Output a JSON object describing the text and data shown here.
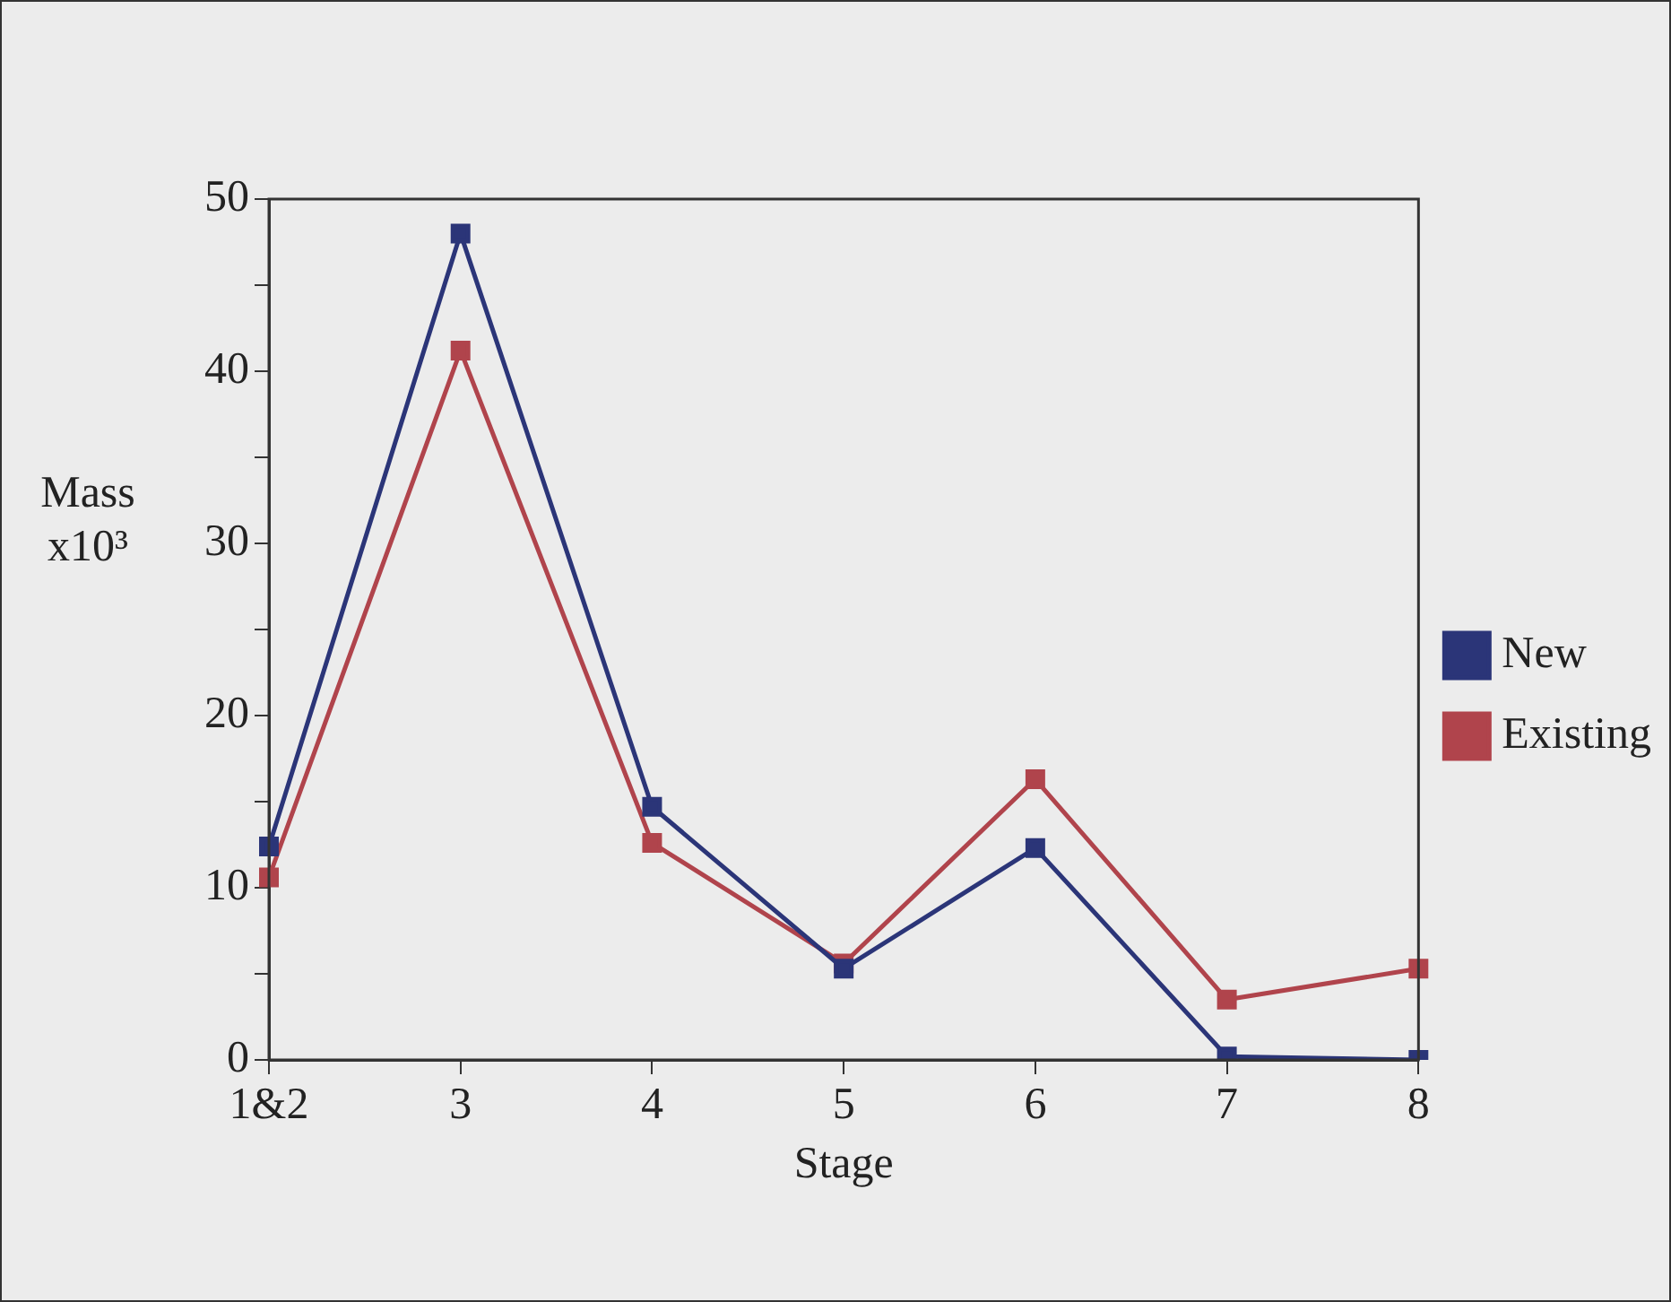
{
  "chart_data": {
    "type": "line",
    "xlabel": "Stage",
    "ylabel": "Mass x10³",
    "categories": [
      "1&2",
      "3",
      "4",
      "5",
      "6",
      "7",
      "8"
    ],
    "series": [
      {
        "name": "Existing",
        "color": "#b0444c",
        "values": [
          10.6,
          41.2,
          12.6,
          5.6,
          16.3,
          3.5,
          5.3
        ]
      },
      {
        "name": "New",
        "color": "#2b3578",
        "values": [
          12.4,
          48.0,
          14.7,
          5.3,
          12.3,
          0.2,
          0
        ]
      }
    ],
    "ylim": [
      0,
      50
    ],
    "yticks": [
      0,
      {
        "value": 5,
        "label": null
      },
      10,
      {
        "value": 15,
        "label": null
      },
      20,
      {
        "value": 25,
        "label": null
      },
      30,
      {
        "value": 35,
        "label": null
      },
      40,
      {
        "value": 45,
        "label": null
      },
      50
    ],
    "grid": false,
    "legend": "right",
    "marker": "square",
    "line_style": "solid"
  }
}
